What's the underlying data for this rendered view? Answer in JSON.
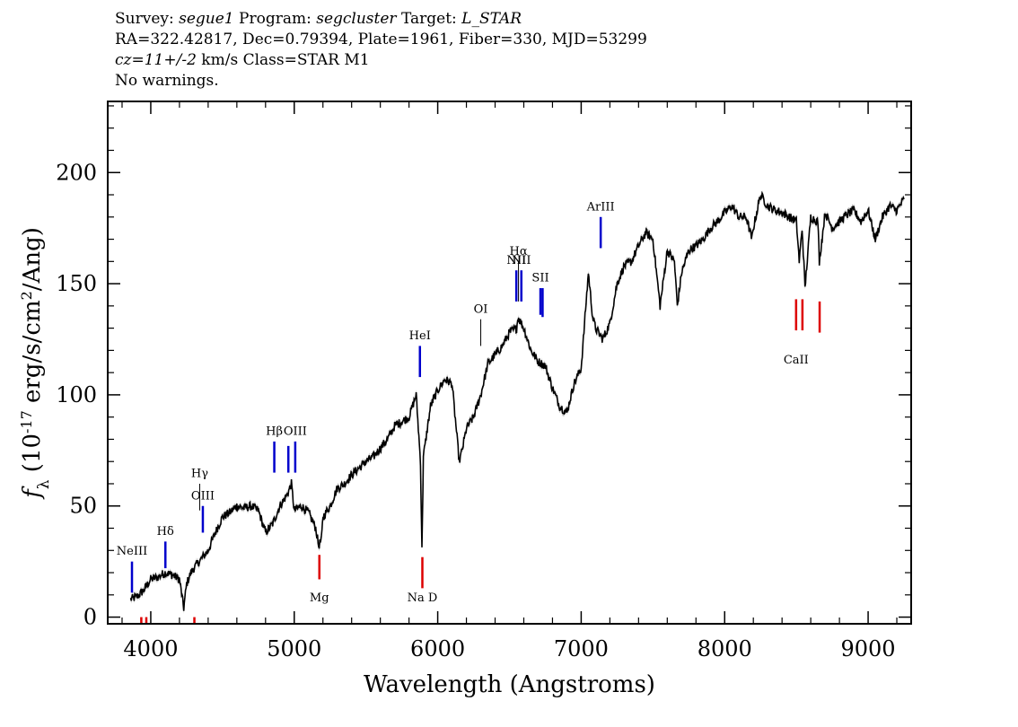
{
  "header": {
    "line1": {
      "survey_label": "Survey: ",
      "survey": "segue1",
      "program_label": " Program: ",
      "program": "segcluster",
      "target_label": " Target: ",
      "target": "L_STAR"
    },
    "line2": "RA=322.42817, Dec=0.79394, Plate=1961, Fiber=330, MJD=53299",
    "line3": {
      "cz": "cz=11+/-2",
      "rest": " km/s Class=STAR M1"
    },
    "line4": "No warnings."
  },
  "colors": {
    "spectrum": "#000000",
    "error_band": "#b8b8b8",
    "emission_marker": "#0000cc",
    "absorption_marker": "#dd0000",
    "axis": "#000000"
  },
  "chart_data": {
    "type": "line",
    "xlabel": "Wavelength (Angstroms)",
    "ylabel_parts": {
      "f": "f",
      "sub": "λ",
      "a": " (10",
      "exp1": "-17",
      "b": " erg/s/cm",
      "exp2": "2",
      "c": "/Ang)"
    },
    "xlim": [
      3700,
      9300
    ],
    "ylim": [
      -3,
      232
    ],
    "x_ticks": [
      4000,
      5000,
      6000,
      7000,
      8000,
      9000
    ],
    "x_tick_labels": [
      "4000",
      "5000",
      "6000",
      "7000",
      "8000",
      "9000"
    ],
    "x_minor_step": 200,
    "y_ticks": [
      0,
      50,
      100,
      150,
      200
    ],
    "y_tick_labels": [
      "0",
      "50",
      "100",
      "150",
      "200"
    ],
    "y_minor_step": 10,
    "series": [
      {
        "x": [
          3860,
          3900,
          3950,
          4000,
          4050,
          4100,
          4150,
          4200,
          4230,
          4250,
          4280,
          4300,
          4350,
          4400,
          4450,
          4500,
          4550,
          4600,
          4650,
          4700,
          4750,
          4800,
          4850,
          4900,
          4950,
          4980,
          5000,
          5050,
          5100,
          5150,
          5170,
          5190,
          5200,
          5250,
          5300,
          5350,
          5400,
          5450,
          5500,
          5550,
          5600,
          5650,
          5700,
          5750,
          5800,
          5850,
          5880,
          5890,
          5900,
          5950,
          6000,
          6050,
          6100,
          6150,
          6170,
          6200,
          6250,
          6300,
          6350,
          6400,
          6450,
          6500,
          6550,
          6560,
          6600,
          6650,
          6700,
          6750,
          6800,
          6850,
          6900,
          6950,
          7000,
          7050,
          7080,
          7100,
          7150,
          7200,
          7250,
          7300,
          7350,
          7400,
          7450,
          7500,
          7550,
          7600,
          7650,
          7670,
          7700,
          7750,
          7800,
          7850,
          7900,
          7950,
          8000,
          8050,
          8100,
          8150,
          8190,
          8200,
          8250,
          8300,
          8350,
          8400,
          8450,
          8500,
          8520,
          8540,
          8560,
          8600,
          8650,
          8660,
          8700,
          8750,
          8800,
          8850,
          8900,
          8950,
          9000,
          9050,
          9100,
          9150,
          9200,
          9250
        ],
        "y": [
          8,
          9,
          12,
          17,
          18,
          20,
          19,
          17,
          4,
          15,
          20,
          22,
          26,
          30,
          38,
          45,
          47,
          50,
          49,
          50,
          48,
          38,
          42,
          50,
          55,
          60,
          48,
          50,
          47,
          40,
          32,
          35,
          45,
          50,
          58,
          60,
          64,
          67,
          70,
          72,
          76,
          80,
          86,
          88,
          90,
          100,
          70,
          30,
          72,
          95,
          102,
          107,
          105,
          70,
          75,
          85,
          90,
          100,
          114,
          118,
          122,
          128,
          130,
          135,
          130,
          120,
          115,
          113,
          103,
          95,
          92,
          105,
          112,
          155,
          135,
          130,
          125,
          132,
          150,
          158,
          160,
          167,
          173,
          170,
          140,
          165,
          160,
          140,
          155,
          165,
          167,
          170,
          175,
          178,
          182,
          185,
          180,
          180,
          170,
          175,
          190,
          185,
          183,
          182,
          180,
          178,
          160,
          175,
          148,
          180,
          178,
          160,
          182,
          175,
          178,
          181,
          183,
          178,
          183,
          170,
          180,
          185,
          183,
          188
        ]
      }
    ],
    "line_markers": [
      {
        "label": "NeIII",
        "x": 3869,
        "kind": "emission",
        "y0": 11,
        "y1": 25,
        "label_y": 28
      },
      {
        "label": "Hδ",
        "x": 4102,
        "kind": "emission",
        "y0": 22,
        "y1": 34,
        "label_y": 37
      },
      {
        "label": "Hγ",
        "x": 4341,
        "kind": "emission-thin",
        "y0": 48,
        "y1": 60,
        "label_y": 63
      },
      {
        "label": "OIII",
        "x": 4363,
        "kind": "emission",
        "y0": 38,
        "y1": 50,
        "label_y": 53
      },
      {
        "label": "Hβ",
        "x": 4861,
        "kind": "emission",
        "y0": 65,
        "y1": 79,
        "label_y": 82
      },
      {
        "label": "OIII",
        "x": 4959,
        "kind": "emission",
        "y0": 65,
        "y1": 77,
        "label_y": null
      },
      {
        "label": "OIII",
        "x": 5007,
        "kind": "emission",
        "y0": 65,
        "y1": 79,
        "label_y": 82
      },
      {
        "label": "Mg",
        "x": 5175,
        "kind": "absorption",
        "y0": 17,
        "y1": 28,
        "label_y": 7
      },
      {
        "label": "Na D",
        "x": 5893,
        "kind": "absorption",
        "y0": 13,
        "y1": 27,
        "label_y": 7
      },
      {
        "label": "HeI",
        "x": 5876,
        "kind": "emission",
        "y0": 108,
        "y1": 122,
        "label_y": 125
      },
      {
        "label": "OI",
        "x": 6300,
        "kind": "emission-thin",
        "y0": 122,
        "y1": 134,
        "label_y": 137
      },
      {
        "label": "NII",
        "x": 6548,
        "kind": "emission",
        "y0": 142,
        "y1": 156,
        "label_y": 159
      },
      {
        "label": "Hα",
        "x": 6563,
        "kind": "emission-thin",
        "y0": 142,
        "y1": 160,
        "label_y": 163
      },
      {
        "label": "NII",
        "x": 6583,
        "kind": "emission",
        "y0": 142,
        "y1": 156,
        "label_y": 159
      },
      {
        "label": "SII",
        "x": 6716,
        "kind": "emission",
        "y0": 136,
        "y1": 148,
        "label_y": 151
      },
      {
        "label": "SII",
        "x": 6731,
        "kind": "emission",
        "y0": 135,
        "y1": 148,
        "label_y": null
      },
      {
        "label": "ArIII",
        "x": 7136,
        "kind": "emission",
        "y0": 166,
        "y1": 180,
        "label_y": 183
      },
      {
        "label": "CaII",
        "x": 8498,
        "kind": "absorption",
        "y0": 129,
        "y1": 143,
        "label_y": 114
      },
      {
        "label": "CaII",
        "x": 8542,
        "kind": "absorption",
        "y0": 129,
        "y1": 143,
        "label_y": null
      },
      {
        "label": "CaII",
        "x": 8662,
        "kind": "absorption",
        "y0": 128,
        "y1": 142,
        "label_y": null
      },
      {
        "label": "",
        "x": 3934,
        "kind": "absorption",
        "y0": -3,
        "y1": 0,
        "label_y": null
      },
      {
        "label": "",
        "x": 3969,
        "kind": "absorption",
        "y0": -3,
        "y1": 0,
        "label_y": null
      },
      {
        "label": "",
        "x": 4304,
        "kind": "absorption",
        "y0": -3,
        "y1": 0,
        "label_y": null
      }
    ]
  }
}
